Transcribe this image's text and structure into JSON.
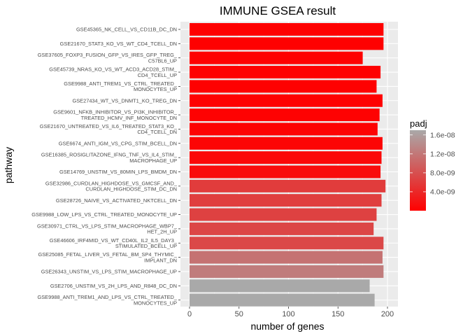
{
  "chart_data": {
    "type": "bar",
    "orientation": "horizontal",
    "title": "IMMUNE GSEA result",
    "xlabel": "number of genes",
    "ylabel": "pathway",
    "xlim": [
      0,
      200
    ],
    "xticks": [
      "0",
      "50",
      "100",
      "150",
      "200"
    ],
    "grid": true,
    "legend": {
      "title": "padj",
      "position": "right",
      "ticks": [
        "1.6e-08",
        "1.2e-08",
        "8.0e-09",
        "4.0e-09"
      ],
      "low_color": "#ff0000",
      "high_color": "#a9a9a9"
    },
    "bars": [
      {
        "label": [
          "GSE45365_NK_CELL_VS_CD11B_DC_DN"
        ],
        "value": 196,
        "padj": 1e-10
      },
      {
        "label": [
          "GSE21670_STAT3_KO_VS_WT_CD4_TCELL_DN"
        ],
        "value": 196,
        "padj": 1e-10
      },
      {
        "label": [
          "GSE37605_FOXP3_FUSION_GFP_VS_IRES_GFP_TREG_",
          "C57BL6_UP"
        ],
        "value": 175,
        "padj": 1e-10
      },
      {
        "label": [
          "GSE45739_NRAS_KO_VS_WT_ACD3_ACD28_STIM_",
          "CD4_TCELL_UP"
        ],
        "value": 193,
        "padj": 1e-10
      },
      {
        "label": [
          "GSE9988_ANTI_TREM1_VS_CTRL_TREATED_",
          "MONOCYTES_UP"
        ],
        "value": 189,
        "padj": 1e-10
      },
      {
        "label": [
          "GSE27434_WT_VS_DNMT1_KO_TREG_DN"
        ],
        "value": 195,
        "padj": 2e-10
      },
      {
        "label": [
          "GSE9601_NFKB_INHIBITOR_VS_PI3K_INHIBITOR_",
          "TREATED_HCMV_INF_MONOCYTE_DN"
        ],
        "value": 192,
        "padj": 2e-10
      },
      {
        "label": [
          "GSE21670_UNTREATED_VS_IL6_TREATED_STAT3_KO_",
          "CD4_TCELL_DN"
        ],
        "value": 190,
        "padj": 3e-10
      },
      {
        "label": [
          "GSE6674_ANTI_IGM_VS_CPG_STIM_BCELL_DN"
        ],
        "value": 195,
        "padj": 5e-10
      },
      {
        "label": [
          "GSE16385_ROSIGLITAZONE_IFNG_TNF_VS_IL4_STIM_",
          "MACROPHAGE_UP"
        ],
        "value": 194,
        "padj": 8e-10
      },
      {
        "label": [
          "GSE14769_UNSTIM_VS_80MIN_LPS_BMDM_DN"
        ],
        "value": 193,
        "padj": 1.2e-09
      },
      {
        "label": [
          "GSE32986_CURDLAN_HIGHDOSE_VS_GMCSF_AND_",
          "CURDLAN_HIGHDOSE_STIM_DC_DN"
        ],
        "value": 198,
        "padj": 6e-09
      },
      {
        "label": [
          "GSE28726_NAIVE_VS_ACTIVATED_NKTCELL_DN"
        ],
        "value": 194,
        "padj": 6.2e-09
      },
      {
        "label": [
          "GSE9988_LOW_LPS_VS_CTRL_TREATED_MONOCYTE_UP"
        ],
        "value": 189,
        "padj": 6.5e-09
      },
      {
        "label": [
          "GSE30971_CTRL_VS_LPS_STIM_MACROPHAGE_WBP7_",
          "HET_2H_UP"
        ],
        "value": 186,
        "padj": 7e-09
      },
      {
        "label": [
          "GSE46606_IRF4MID_VS_WT_CD40L_IL2_IL5_DAY3_",
          "STIMULATED_BCELL_UP"
        ],
        "value": 196,
        "padj": 7.2e-09
      },
      {
        "label": [
          "GSE25085_FETAL_LIVER_VS_FETAL_BM_SP4_THYMIC_",
          "IMPLANT_DN"
        ],
        "value": 195,
        "padj": 1.15e-08
      },
      {
        "label": [
          "GSE26343_UNSTIM_VS_LPS_STIM_MACROPHAGE_UP"
        ],
        "value": 196,
        "padj": 1.25e-08
      },
      {
        "label": [
          "GSE2706_UNSTIM_VS_2H_LPS_AND_R848_DC_DN"
        ],
        "value": 182,
        "padj": 1.7e-08
      },
      {
        "label": [
          "GSE9988_ANTI_TREM1_AND_LPS_VS_CTRL_TREATED_",
          "MONOCYTES_UP"
        ],
        "value": 187,
        "padj": 1.7e-08
      }
    ]
  }
}
